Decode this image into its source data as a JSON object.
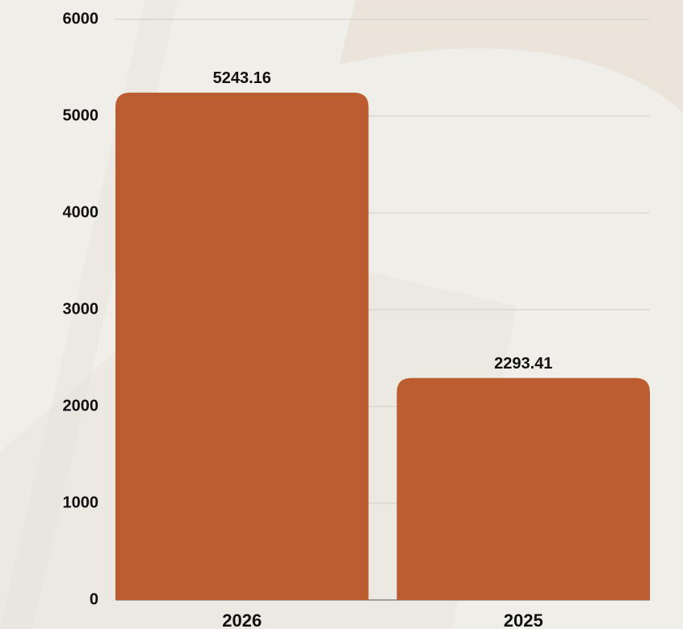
{
  "chart_data": {
    "type": "bar",
    "categories": [
      "2026",
      "2025"
    ],
    "values": [
      5243.16,
      2293.41
    ],
    "color": "#bb5d31",
    "ylim": [
      0,
      6000
    ],
    "yticks": [
      0,
      1000,
      2000,
      3000,
      4000,
      5000,
      6000
    ],
    "grid": true
  }
}
